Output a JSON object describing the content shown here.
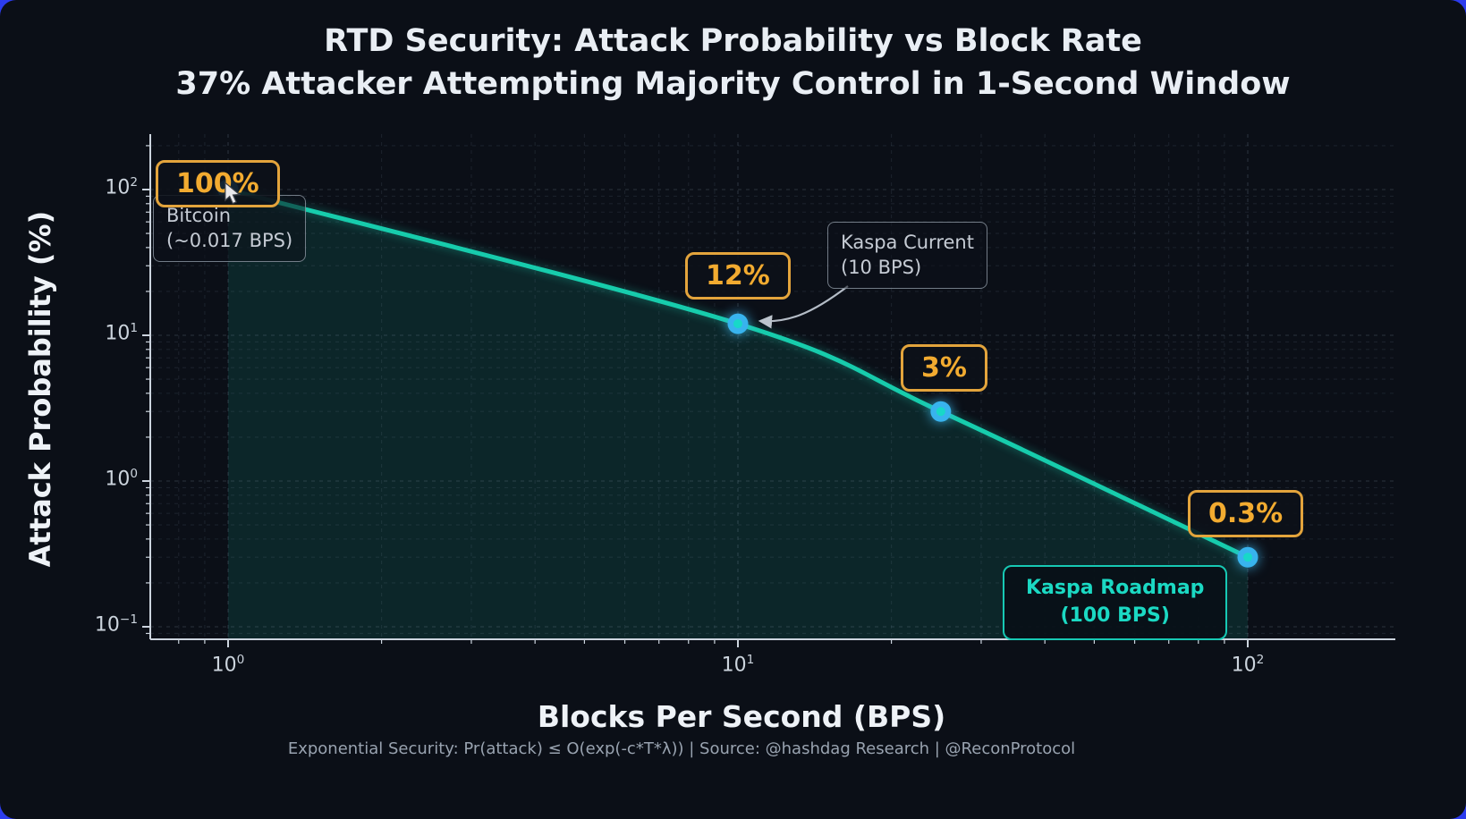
{
  "colors": {
    "page_background": "#2c3cee",
    "figure_background": "#0b0f17",
    "curve": "#17ccac",
    "area_fill": "rgba(23,204,172,0.12)",
    "marker_outer": "#38b3ee",
    "marker_inner": "#18d8c8",
    "grid_major": "rgba(140,160,180,0.25)",
    "grid_minor": "rgba(130,150,170,0.14)",
    "axis": "#ccd4de",
    "callout_accent": "#e3a43c",
    "roadmap_accent": "#17c9b4"
  },
  "chart_data": {
    "type": "line",
    "title": "RTD Security: Attack Probability vs Block Rate",
    "subtitle": "37% Attacker Attempting Majority Control in 1-Second Window",
    "xlabel": "Blocks Per Second (BPS)",
    "ylabel": "Attack Probability (%)",
    "x_scale": "log",
    "y_scale": "log",
    "xlim": [
      0.72,
      190
    ],
    "ylim": [
      0.085,
      235
    ],
    "grid": true,
    "fill_under_curve": true,
    "legend": "none",
    "points": [
      {
        "x": 1,
        "y": 100,
        "label": "100%"
      },
      {
        "x": 10,
        "y": 12,
        "label": "12%"
      },
      {
        "x": 25,
        "y": 3,
        "label": "3%"
      },
      {
        "x": 100,
        "y": 0.3,
        "label": "0.3%"
      }
    ],
    "x_ticks": [
      {
        "value": 1,
        "base": "10",
        "exp": "0"
      },
      {
        "value": 10,
        "base": "10",
        "exp": "1"
      },
      {
        "value": 100,
        "base": "10",
        "exp": "2"
      }
    ],
    "y_ticks": [
      {
        "value": 100,
        "base": "10",
        "exp": "2"
      },
      {
        "value": 10,
        "base": "10",
        "exp": "1"
      },
      {
        "value": 1,
        "base": "10",
        "exp": "0"
      },
      {
        "value": 0.1,
        "base": "10",
        "exp": "−1"
      }
    ],
    "annotations": [
      {
        "line1": "Bitcoin",
        "line2": "(~0.017 BPS)"
      },
      {
        "line1": "Kaspa Current",
        "line2": "(10 BPS)"
      },
      {
        "line1": "Kaspa Roadmap",
        "line2": "(100 BPS)"
      }
    ]
  },
  "footer": "Exponential Security: Pr(attack) ≤ O(exp(-c*T*λ))  |  Source: @hashdag Research  |  @ReconProtocol"
}
